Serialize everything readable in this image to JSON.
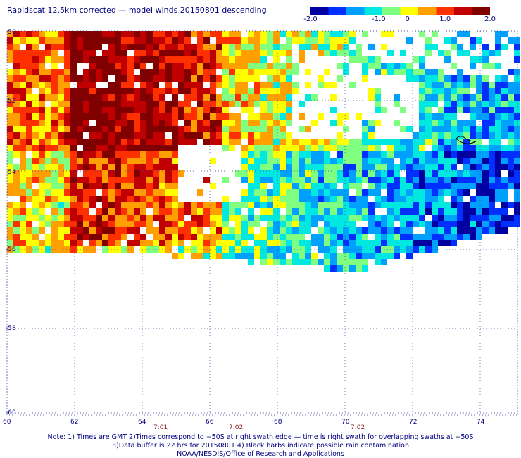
{
  "title": "Rapidscat 12.5km corrected — model winds 20150801 descending",
  "colorbar": {
    "ticks": [
      "-2.0",
      "-1.0",
      "0",
      "1.0",
      "2.0"
    ],
    "colors": [
      "#0000a0",
      "#0030ff",
      "#00a0ff",
      "#00e8e0",
      "#80ff80",
      "#ffff00",
      "#ffa000",
      "#ff3000",
      "#c00000",
      "#800000"
    ]
  },
  "axes": {
    "lat_labels": [
      "-50",
      "-52",
      "-54",
      "-56",
      "-58",
      "-60"
    ],
    "lon_labels": [
      "60",
      "62",
      "64",
      "66",
      "68",
      "70",
      "72",
      "74"
    ]
  },
  "swath_times": [
    "7:01",
    "7:02",
    "7:02"
  ],
  "notes": [
    "Note: 1) Times are GMT 2)Times correspond to −50S at right swath edge — time is right swath for overlapping swaths at −50S",
    "3)Data buffer is 22 hrs for 20150801 4) Black barbs indicate possible rain contamination",
    "NOAA/NESDIS/Office of Research and Applications"
  ],
  "colors": {
    "text": "#000080",
    "grid": "#3a3aa0",
    "swath_time": "#8b1a1a",
    "no_data": "#ffffff"
  }
}
